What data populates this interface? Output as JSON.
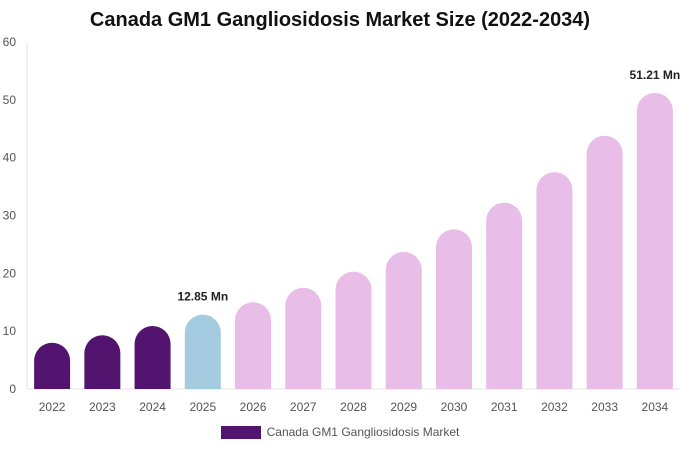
{
  "chart_data": {
    "type": "bar",
    "title": "Canada GM1 Gangliosidosis Market Size (2022-2034)",
    "xlabel": "",
    "ylabel": "",
    "categories": [
      "2022",
      "2023",
      "2024",
      "2025",
      "2026",
      "2027",
      "2028",
      "2029",
      "2030",
      "2031",
      "2032",
      "2033",
      "2034"
    ],
    "series": [
      {
        "name": "Canada GM1 Gangliosidosis Market",
        "values": [
          8.0,
          9.3,
          10.9,
          12.85,
          15.0,
          17.5,
          20.3,
          23.7,
          27.6,
          32.2,
          37.5,
          43.8,
          51.21
        ]
      }
    ],
    "bar_colors": [
      "#52146f",
      "#52146f",
      "#52146f",
      "#a4cadf",
      "#e8bde8",
      "#e8bde8",
      "#e8bde8",
      "#e8bde8",
      "#e8bde8",
      "#e8bde8",
      "#e8bde8",
      "#e8bde8",
      "#e8bde8"
    ],
    "data_labels": [
      {
        "category": "2025",
        "text": "12.85 Mn"
      },
      {
        "category": "2034",
        "text": "51.21 Mn"
      }
    ],
    "ylim": [
      0,
      60
    ],
    "yticks": [
      0,
      10,
      20,
      30,
      40,
      50,
      60
    ],
    "grid": false,
    "legend": {
      "position": "bottom",
      "label": "Canada GM1 Gangliosidosis Market",
      "color": "#52146f"
    }
  }
}
